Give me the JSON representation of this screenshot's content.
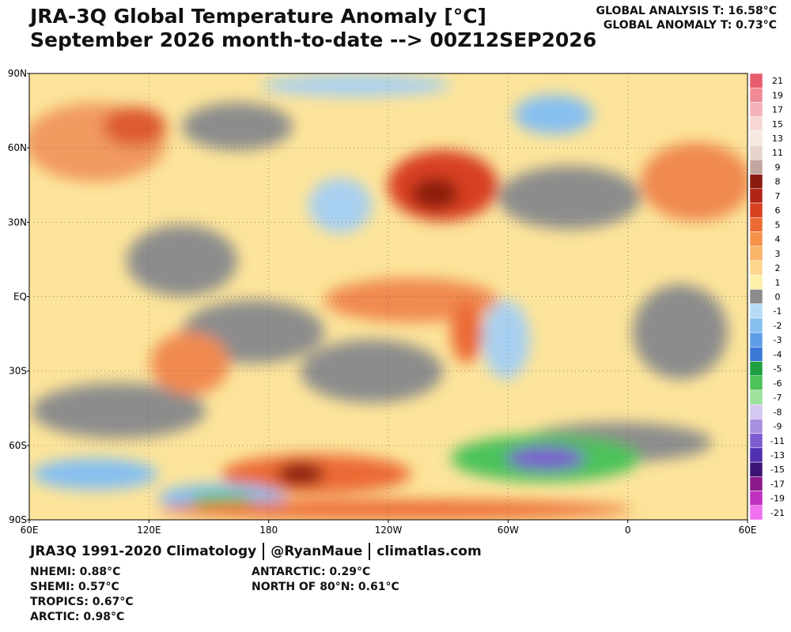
{
  "header": {
    "title": "JRA-3Q Global Temperature Anomaly [°C]",
    "subtitle": "September 2026 month-to-date --> 00Z12SEP2026",
    "global_analysis": "GLOBAL ANALYSIS T: 16.58°C",
    "global_anomaly": "GLOBAL ANOMALY T: 0.73°C"
  },
  "map": {
    "lat_labels": [
      "90N",
      "60N",
      "30N",
      "EQ",
      "30S",
      "60S",
      "90S"
    ],
    "lon_labels": [
      "60E",
      "120E",
      "180",
      "120W",
      "60W",
      "0",
      "60E"
    ]
  },
  "colorbar": {
    "labels": [
      "21",
      "19",
      "17",
      "15",
      "13",
      "11",
      "9",
      "8",
      "7",
      "6",
      "5",
      "4",
      "3",
      "2",
      "1",
      "0",
      "-1",
      "-2",
      "-3",
      "-4",
      "-5",
      "-6",
      "-7",
      "-8",
      "-9",
      "-11",
      "-13",
      "-15",
      "-17",
      "-19",
      "-21"
    ],
    "colors": [
      "#e85c6e",
      "#f08a96",
      "#f4b2b8",
      "#f8d6d6",
      "#f6e8e0",
      "#e6d4cc",
      "#c4a6a0",
      "#8b1a10",
      "#b32418",
      "#d84020",
      "#ec6a34",
      "#f5924a",
      "#f9b46a",
      "#fcd68c",
      "#fdf0a8",
      "#8c8c8c",
      "#b6dcf4",
      "#86bff0",
      "#5f9ee6",
      "#3a78d8",
      "#1fa040",
      "#4cc25a",
      "#9ce29c",
      "#d4c8f0",
      "#a890e0",
      "#7c5cd0",
      "#5030b0",
      "#3c1478",
      "#8a1a8a",
      "#c030c0",
      "#f070f0"
    ]
  },
  "footer": {
    "credits": [
      "JRA3Q 1991-2020 Climatology",
      "@RyanMaue",
      "climatlas.com"
    ],
    "stats_left": [
      "NHEMI: 0.88°C",
      "SHEMI: 0.57°C",
      "TROPICS: 0.67°C",
      "ARCTIC: 0.98°C"
    ],
    "stats_right": [
      "ANTARCTIC: 0.29°C",
      "NORTH OF 80°N: 0.61°C"
    ]
  }
}
